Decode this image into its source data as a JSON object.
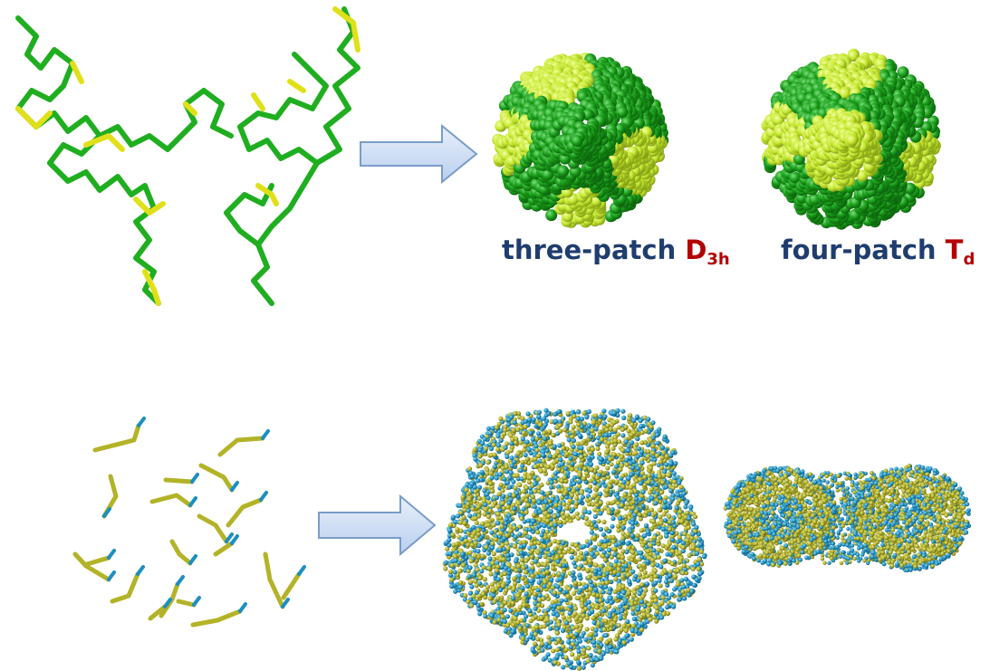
{
  "labels": {
    "three_patch": {
      "text": "three-patch",
      "symbol": "D",
      "subscript": "3h"
    },
    "four_patch": {
      "text": "four-patch",
      "symbol": "T",
      "subscript": "d"
    }
  },
  "colors": {
    "chain_green": "#1fae1f",
    "chain_yellow": "#e0e01a",
    "sphere_dark": "#119a11",
    "sphere_light": "#c9f03a",
    "rod_yellow": "#b3b328",
    "rod_blue": "#1d8fc0",
    "arrow_fill": "#cfe0f7",
    "arrow_stroke": "#7a9cc8",
    "label_blue": "#1f3d6e",
    "label_red": "#b30000"
  }
}
